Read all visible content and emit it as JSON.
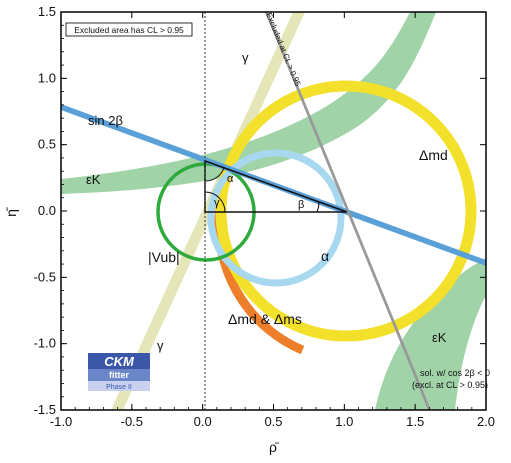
{
  "chart_data": {
    "type": "contour",
    "xlabel": "ρ̄",
    "ylabel": "η̄",
    "xlim": [
      -1.0,
      2.0
    ],
    "ylim": [
      -1.5,
      1.5
    ],
    "xticks": [
      "-1.0",
      "-0.5",
      "0.0",
      "0.5",
      "1.0",
      "1.5",
      "2.0"
    ],
    "yticks": [
      "-1.5",
      "-1.0",
      "-0.5",
      "0.0",
      "0.5",
      "1.0",
      "1.5"
    ],
    "apex": {
      "rho": 0.0,
      "eta": 0.36
    },
    "note_box": "Excluded area has CL > 0.95",
    "colors": {
      "epsilonK": "#8fcc99",
      "sin2beta": "#5aa0d8",
      "deltamd": "#f2e02a",
      "deltamd_ms": "#ee7f2a",
      "vub": "#2eaa3c",
      "alpha": "#a8d8f0",
      "gamma": "#e2e3b0",
      "excluded_line": "#999999"
    },
    "annotations": {
      "sin2b": "sin 2β",
      "epsk_left": "εK",
      "epsk_right": "εK",
      "dmd": "Δmd",
      "dmd_dms": "Δmd & Δms",
      "vub": "|Vub|",
      "alpha_region": "α",
      "gamma_top": "γ",
      "gamma_bottom": "γ",
      "tri_alpha": "α",
      "tri_beta": "β",
      "tri_gamma": "γ",
      "excluded_cos": "Excluded at CL > 0.95",
      "sol_line1": "sol. w/ cos 2β < 0",
      "sol_line2": "(excl. at CL > 0.95)"
    },
    "logo": {
      "title": "CKM",
      "subtitle": "fitter",
      "phase": "Phase II"
    }
  }
}
